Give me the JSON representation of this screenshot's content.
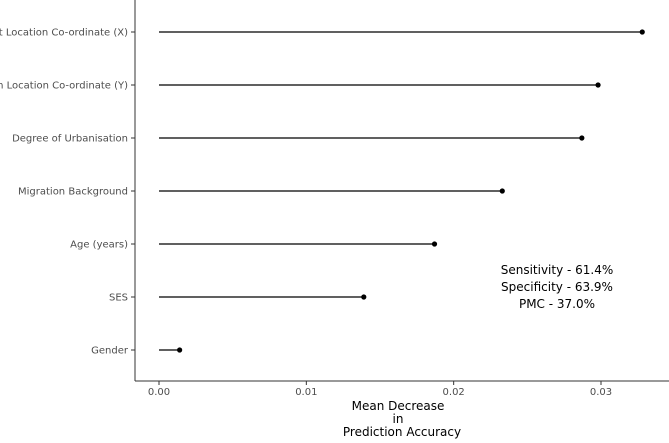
{
  "chart_data": {
    "type": "lollipop",
    "orientation": "horizontal",
    "categories": [
      "West Location Co-ordinate (X)",
      "South Location Co-ordinate (Y)",
      "Degree of Urbanisation",
      "Migration Background",
      "Age (years)",
      "SES",
      "Gender"
    ],
    "values": [
      0.0328,
      0.0298,
      0.0287,
      0.0233,
      0.0187,
      0.0139,
      0.0014
    ],
    "xlabel": [
      "Mean Decrease",
      "in",
      "Prediction Accuracy"
    ],
    "ylabel": "",
    "xlim": [
      -0.0008,
      0.0344
    ],
    "xticks": [
      0.0,
      0.01,
      0.02,
      0.03
    ],
    "xtick_labels": [
      "0.00",
      "0.01",
      "0.02",
      "0.03"
    ],
    "grid": false,
    "annotations": [
      "Sensitivity - 61.4%",
      "Specificity - 63.9%",
      "PMC - 37.0%"
    ]
  }
}
